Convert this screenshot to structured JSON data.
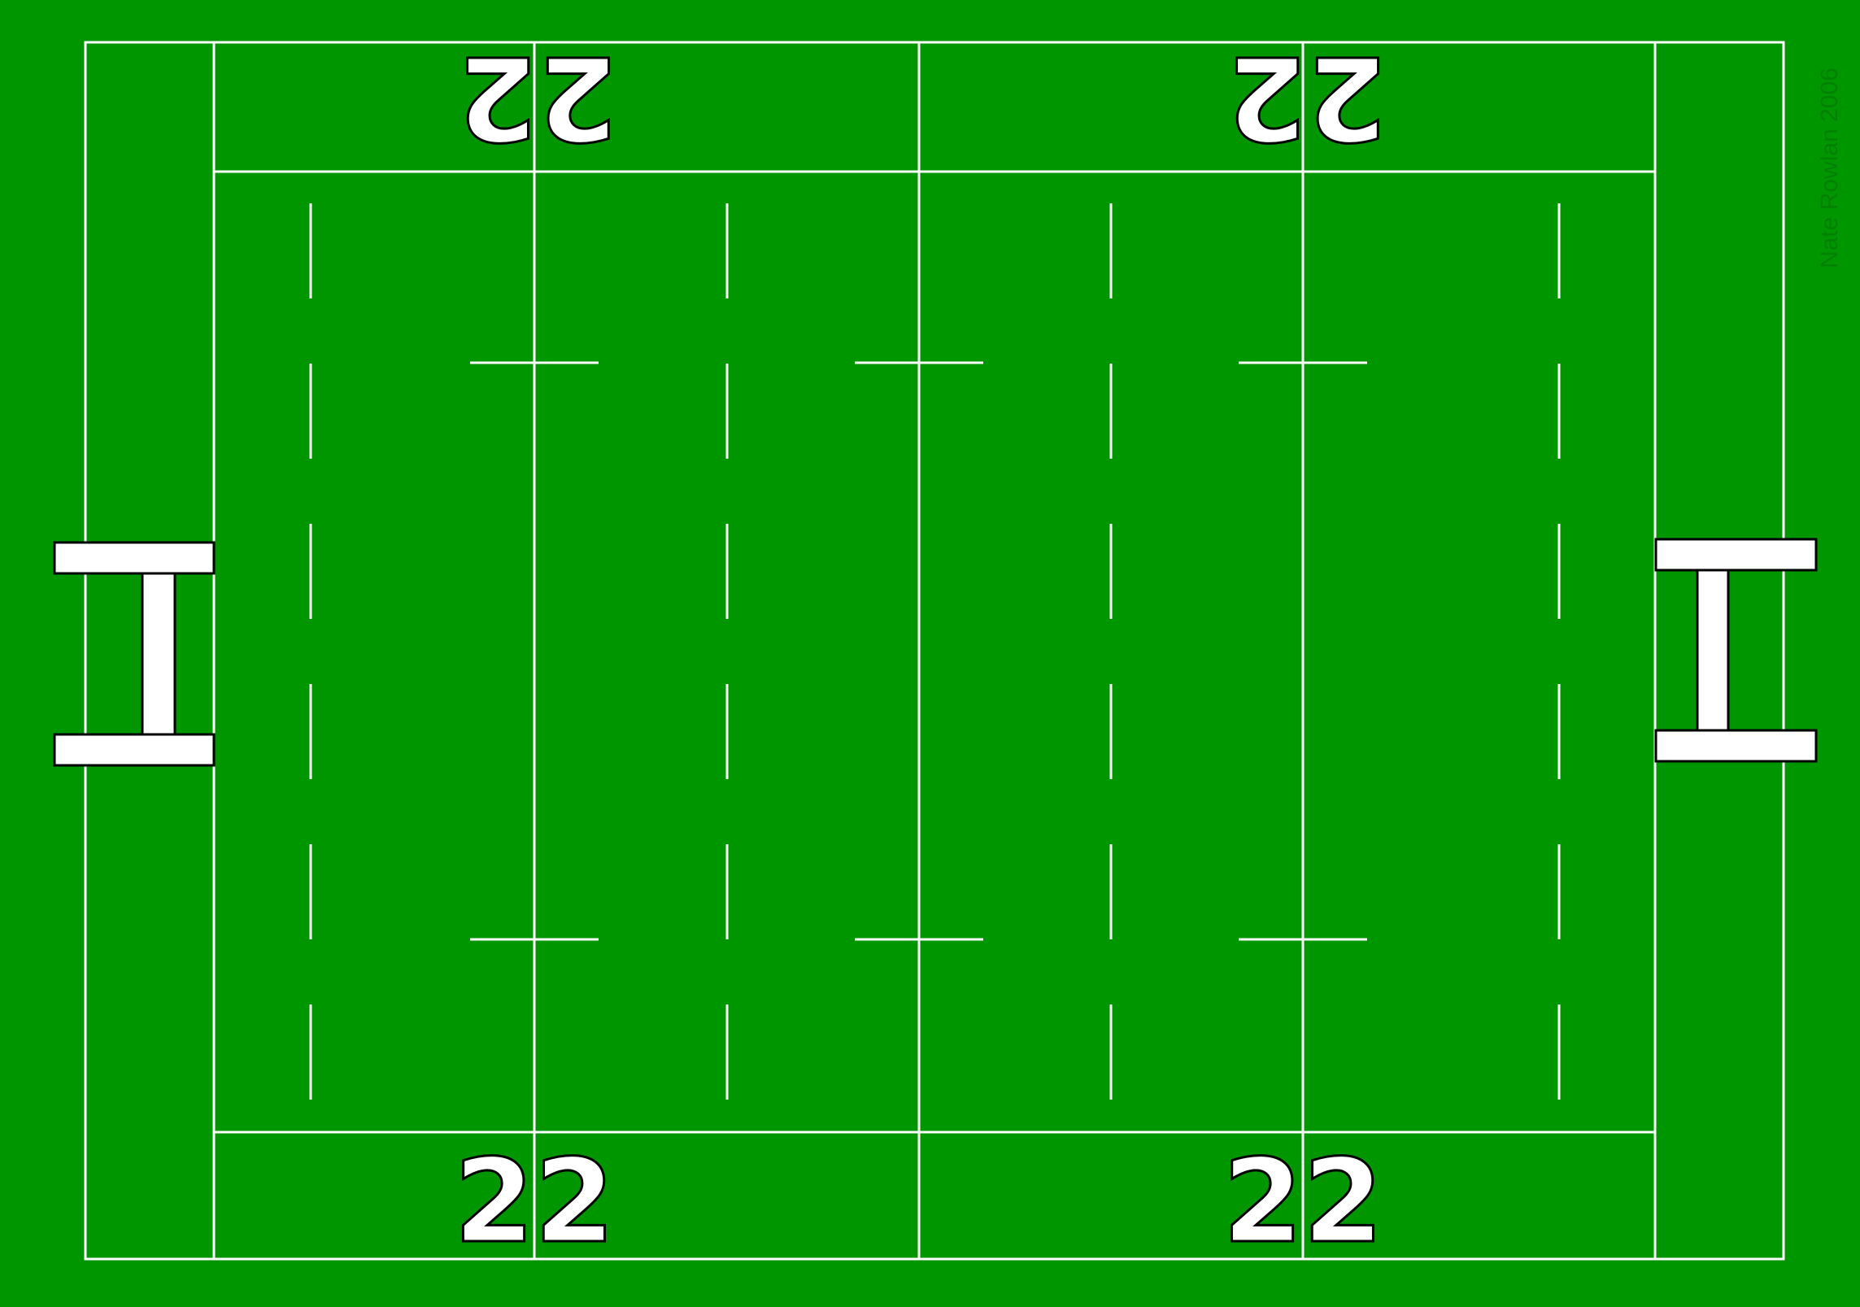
{
  "pitch": {
    "grass_color": "#009600",
    "line_color": "#ffffff",
    "goalpost_color": "#ffffff",
    "credit_color": "#008200"
  },
  "markings": {
    "top_left_22": "22",
    "top_right_22": "22",
    "bottom_left_22": "22",
    "bottom_right_22": "22"
  },
  "credit": "Nate Rowlan 2006"
}
